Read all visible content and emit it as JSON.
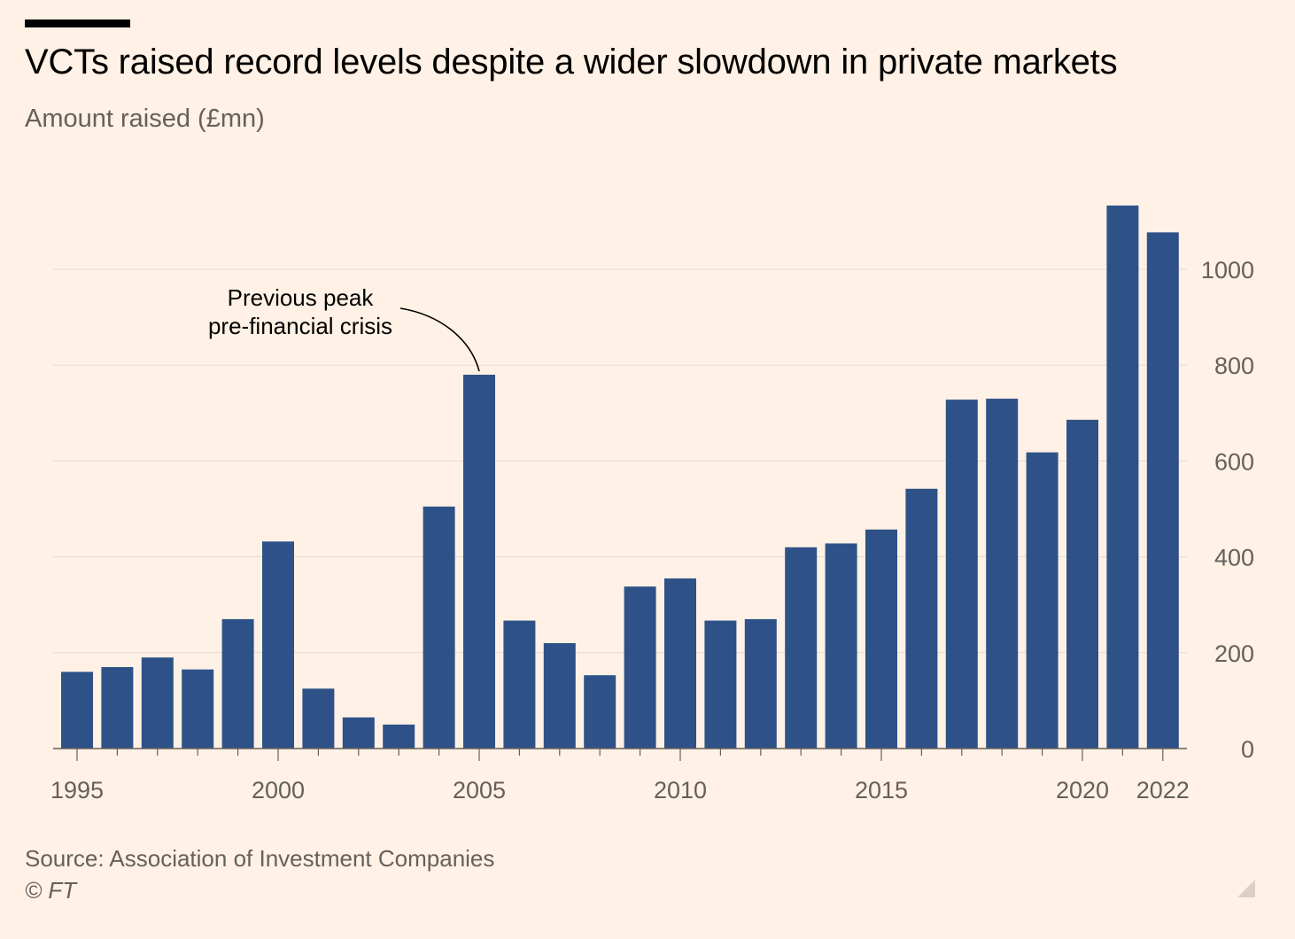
{
  "header": {
    "title": "VCTs raised record levels despite a wider slowdown in private markets",
    "subtitle": "Amount raised (£mn)"
  },
  "footer": {
    "source": "Source: Association of Investment Companies",
    "copyright": "© FT"
  },
  "chart_data": {
    "type": "bar",
    "categories": [
      "1995",
      "1996",
      "1997",
      "1998",
      "1999",
      "2000",
      "2001",
      "2002",
      "2003",
      "2004",
      "2005",
      "2006",
      "2007",
      "2008",
      "2009",
      "2010",
      "2011",
      "2012",
      "2013",
      "2014",
      "2015",
      "2016",
      "2017",
      "2018",
      "2019",
      "2020",
      "2021",
      "2022"
    ],
    "values": [
      160,
      170,
      190,
      165,
      270,
      432,
      125,
      65,
      50,
      505,
      780,
      267,
      220,
      153,
      338,
      355,
      267,
      270,
      420,
      428,
      457,
      542,
      728,
      730,
      618,
      686,
      1133,
      1077
    ],
    "x_tick_labels": [
      "1995",
      "2000",
      "2005",
      "2010",
      "2015",
      "2020",
      "2022"
    ],
    "y_ticks": [
      0,
      200,
      400,
      600,
      800,
      1000
    ],
    "ylim": [
      0,
      1200
    ],
    "y_axis_side": "right",
    "grid": true,
    "bar_color": "#2e5288",
    "annotation": {
      "lines": [
        "Previous peak",
        "pre-financial crisis"
      ],
      "target": "2005"
    }
  }
}
